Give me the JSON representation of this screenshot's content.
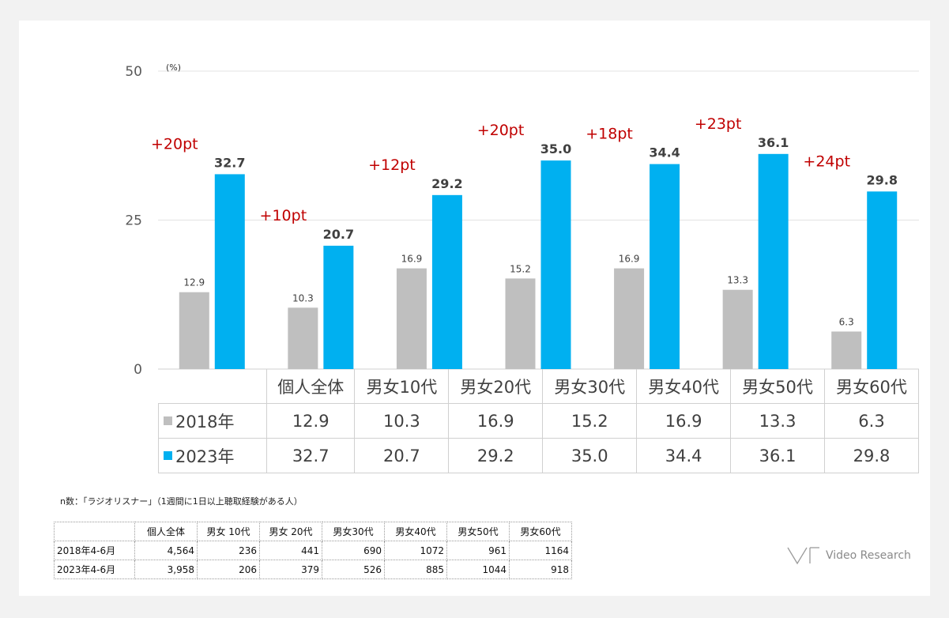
{
  "unit_label": "(%)",
  "chart_data": {
    "type": "bar",
    "categories": [
      "個人全体",
      "男女10代",
      "男女20代",
      "男女30代",
      "男女40代",
      "男女50代",
      "男女60代"
    ],
    "series": [
      {
        "name": "2018年",
        "values": [
          12.9,
          10.3,
          16.9,
          15.2,
          16.9,
          13.3,
          6.3
        ],
        "color": "#bfbfbf"
      },
      {
        "name": "2023年",
        "values": [
          32.7,
          20.7,
          29.2,
          35.0,
          34.4,
          36.1,
          29.8
        ],
        "color": "#00b0f0"
      }
    ],
    "diffs": [
      "+20pt",
      "+10pt",
      "+12pt",
      "+20pt",
      "+18pt",
      "+23pt",
      "+24pt"
    ],
    "diff_color": "#c00000",
    "yticks": [
      "0",
      "25",
      "50"
    ],
    "ylim": [
      0,
      50
    ],
    "grid": true
  },
  "data_table": {
    "rows": [
      {
        "label": "2018年",
        "values": [
          "12.9",
          "10.3",
          "16.9",
          "15.2",
          "16.9",
          "13.3",
          "6.3"
        ]
      },
      {
        "label": "2023年",
        "values": [
          "32.7",
          "20.7",
          "29.2",
          "35.0",
          "34.4",
          "36.1",
          "29.8"
        ]
      }
    ]
  },
  "note": "n数：「ラジオリスナー」（1週間に1日以上聴取経験がある人）",
  "n_table": {
    "headers": [
      "",
      "個人全体",
      "男女 10代",
      "男女 20代",
      "男女30代",
      "男女40代",
      "男女50代",
      "男女60代"
    ],
    "rows": [
      {
        "label": "2018年4-6月",
        "values": [
          "4,564",
          "236",
          "441",
          "690",
          "1072",
          "961",
          "1164"
        ]
      },
      {
        "label": "2023年4-6月",
        "values": [
          "3,958",
          "206",
          "379",
          "526",
          "885",
          "1044",
          "918"
        ]
      }
    ]
  },
  "logo_text": "Video Research"
}
